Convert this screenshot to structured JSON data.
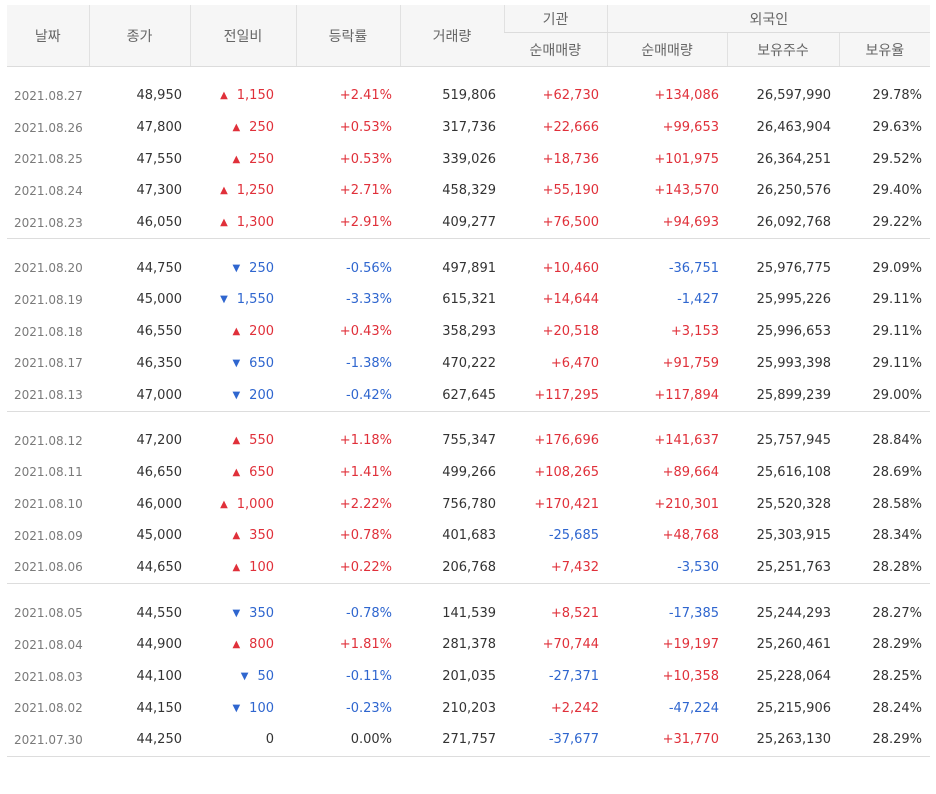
{
  "headers": {
    "date": "날짜",
    "close": "종가",
    "change": "전일비",
    "rate": "등락률",
    "volume": "거래량",
    "institution": "기관",
    "foreign": "외국인",
    "inst_net": "순매매량",
    "foreign_net": "순매매량",
    "foreign_hold": "보유주수",
    "foreign_ratio": "보유율"
  },
  "colors": {
    "up": "#e0303a",
    "down": "#2f66cf"
  },
  "groups": [
    [
      {
        "date": "2021.08.27",
        "close": "48,950",
        "dir": "up",
        "change": "1,150",
        "rate": "+2.41%",
        "volume": "519,806",
        "inst": "+62,730",
        "foreign": "+134,086",
        "hold": "26,597,990",
        "ratio": "29.78%"
      },
      {
        "date": "2021.08.26",
        "close": "47,800",
        "dir": "up",
        "change": "250",
        "rate": "+0.53%",
        "volume": "317,736",
        "inst": "+22,666",
        "foreign": "+99,653",
        "hold": "26,463,904",
        "ratio": "29.63%"
      },
      {
        "date": "2021.08.25",
        "close": "47,550",
        "dir": "up",
        "change": "250",
        "rate": "+0.53%",
        "volume": "339,026",
        "inst": "+18,736",
        "foreign": "+101,975",
        "hold": "26,364,251",
        "ratio": "29.52%"
      },
      {
        "date": "2021.08.24",
        "close": "47,300",
        "dir": "up",
        "change": "1,250",
        "rate": "+2.71%",
        "volume": "458,329",
        "inst": "+55,190",
        "foreign": "+143,570",
        "hold": "26,250,576",
        "ratio": "29.40%"
      },
      {
        "date": "2021.08.23",
        "close": "46,050",
        "dir": "up",
        "change": "1,300",
        "rate": "+2.91%",
        "volume": "409,277",
        "inst": "+76,500",
        "foreign": "+94,693",
        "hold": "26,092,768",
        "ratio": "29.22%"
      }
    ],
    [
      {
        "date": "2021.08.20",
        "close": "44,750",
        "dir": "down",
        "change": "250",
        "rate": "-0.56%",
        "volume": "497,891",
        "inst": "+10,460",
        "foreign": "-36,751",
        "hold": "25,976,775",
        "ratio": "29.09%"
      },
      {
        "date": "2021.08.19",
        "close": "45,000",
        "dir": "down",
        "change": "1,550",
        "rate": "-3.33%",
        "volume": "615,321",
        "inst": "+14,644",
        "foreign": "-1,427",
        "hold": "25,995,226",
        "ratio": "29.11%"
      },
      {
        "date": "2021.08.18",
        "close": "46,550",
        "dir": "up",
        "change": "200",
        "rate": "+0.43%",
        "volume": "358,293",
        "inst": "+20,518",
        "foreign": "+3,153",
        "hold": "25,996,653",
        "ratio": "29.11%"
      },
      {
        "date": "2021.08.17",
        "close": "46,350",
        "dir": "down",
        "change": "650",
        "rate": "-1.38%",
        "volume": "470,222",
        "inst": "+6,470",
        "foreign": "+91,759",
        "hold": "25,993,398",
        "ratio": "29.11%"
      },
      {
        "date": "2021.08.13",
        "close": "47,000",
        "dir": "down",
        "change": "200",
        "rate": "-0.42%",
        "volume": "627,645",
        "inst": "+117,295",
        "foreign": "+117,894",
        "hold": "25,899,239",
        "ratio": "29.00%"
      }
    ],
    [
      {
        "date": "2021.08.12",
        "close": "47,200",
        "dir": "up",
        "change": "550",
        "rate": "+1.18%",
        "volume": "755,347",
        "inst": "+176,696",
        "foreign": "+141,637",
        "hold": "25,757,945",
        "ratio": "28.84%"
      },
      {
        "date": "2021.08.11",
        "close": "46,650",
        "dir": "up",
        "change": "650",
        "rate": "+1.41%",
        "volume": "499,266",
        "inst": "+108,265",
        "foreign": "+89,664",
        "hold": "25,616,108",
        "ratio": "28.69%"
      },
      {
        "date": "2021.08.10",
        "close": "46,000",
        "dir": "up",
        "change": "1,000",
        "rate": "+2.22%",
        "volume": "756,780",
        "inst": "+170,421",
        "foreign": "+210,301",
        "hold": "25,520,328",
        "ratio": "28.58%"
      },
      {
        "date": "2021.08.09",
        "close": "45,000",
        "dir": "up",
        "change": "350",
        "rate": "+0.78%",
        "volume": "401,683",
        "inst": "-25,685",
        "foreign": "+48,768",
        "hold": "25,303,915",
        "ratio": "28.34%"
      },
      {
        "date": "2021.08.06",
        "close": "44,650",
        "dir": "up",
        "change": "100",
        "rate": "+0.22%",
        "volume": "206,768",
        "inst": "+7,432",
        "foreign": "-3,530",
        "hold": "25,251,763",
        "ratio": "28.28%"
      }
    ],
    [
      {
        "date": "2021.08.05",
        "close": "44,550",
        "dir": "down",
        "change": "350",
        "rate": "-0.78%",
        "volume": "141,539",
        "inst": "+8,521",
        "foreign": "-17,385",
        "hold": "25,244,293",
        "ratio": "28.27%"
      },
      {
        "date": "2021.08.04",
        "close": "44,900",
        "dir": "up",
        "change": "800",
        "rate": "+1.81%",
        "volume": "281,378",
        "inst": "+70,744",
        "foreign": "+19,197",
        "hold": "25,260,461",
        "ratio": "28.29%"
      },
      {
        "date": "2021.08.03",
        "close": "44,100",
        "dir": "down",
        "change": "50",
        "rate": "-0.11%",
        "volume": "201,035",
        "inst": "-27,371",
        "foreign": "+10,358",
        "hold": "25,228,064",
        "ratio": "28.25%"
      },
      {
        "date": "2021.08.02",
        "close": "44,150",
        "dir": "down",
        "change": "100",
        "rate": "-0.23%",
        "volume": "210,203",
        "inst": "+2,242",
        "foreign": "-47,224",
        "hold": "25,215,906",
        "ratio": "28.24%"
      },
      {
        "date": "2021.07.30",
        "close": "44,250",
        "dir": "flat",
        "change": "0",
        "rate": "0.00%",
        "volume": "271,757",
        "inst": "-37,677",
        "foreign": "+31,770",
        "hold": "25,263,130",
        "ratio": "28.29%"
      }
    ]
  ]
}
